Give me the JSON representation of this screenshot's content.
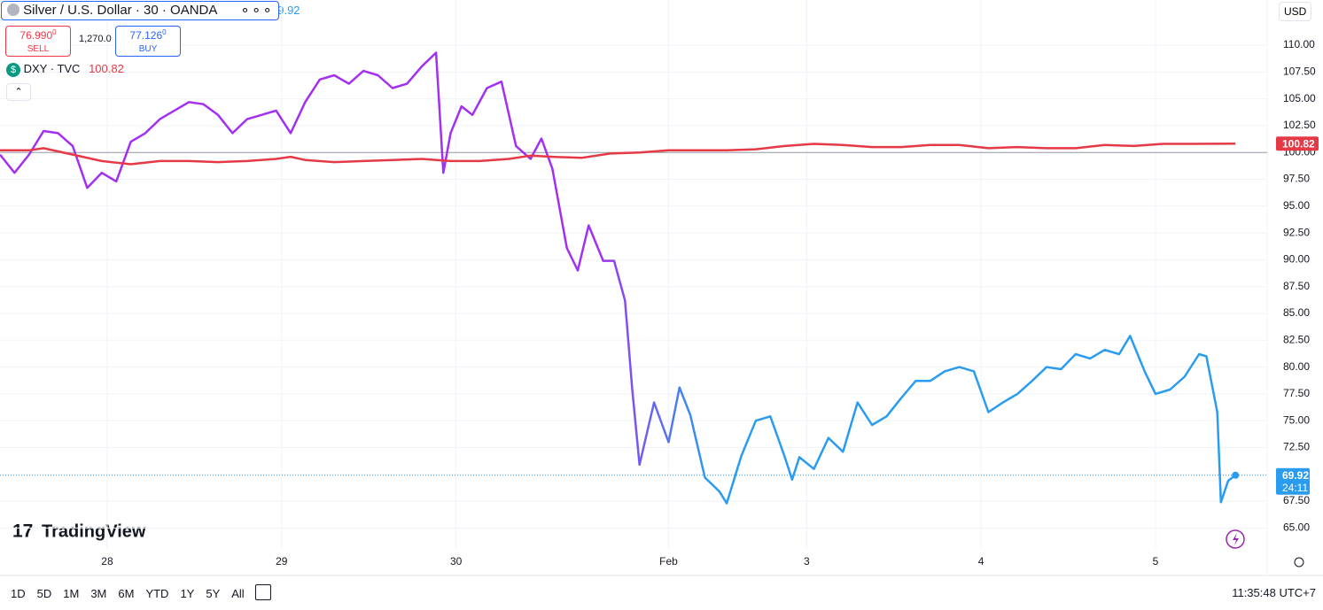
{
  "header": {
    "symbol": "Silver / U.S. Dollar · 30 · OANDA",
    "sell": {
      "price": "76.990",
      "last_digit": "0",
      "label": "SELL"
    },
    "spread": "1,270.0",
    "buy": {
      "price": "77.126",
      "last_digit": "0",
      "label": "BUY"
    },
    "currency": "USD",
    "brand": "TradingView"
  },
  "chart_data": {
    "type": "line",
    "xlim": [
      0,
      348
    ],
    "xticks": [
      {
        "value": 29.5,
        "label": "28"
      },
      {
        "value": 77.5,
        "label": "29"
      },
      {
        "value": 125.5,
        "label": "30"
      },
      {
        "value": 184,
        "label": "Feb"
      },
      {
        "value": 222,
        "label": "3"
      },
      {
        "value": 270,
        "label": "4"
      },
      {
        "value": 318,
        "label": "5"
      }
    ],
    "ylim": [
      63.05,
      114.21
    ],
    "yticks": [
      {
        "value": 65,
        "label": "65.00"
      },
      {
        "value": 67.5,
        "label": "67.50"
      },
      {
        "value": 70,
        "label": "70.00"
      },
      {
        "value": 72.5,
        "label": "72.50"
      },
      {
        "value": 75,
        "label": "75.00"
      },
      {
        "value": 77.5,
        "label": "77.50"
      },
      {
        "value": 80,
        "label": "80.00"
      },
      {
        "value": 82.5,
        "label": "82.50"
      },
      {
        "value": 85,
        "label": "85.00"
      },
      {
        "value": 87.5,
        "label": "87.50"
      },
      {
        "value": 90,
        "label": "90.00"
      },
      {
        "value": 92.5,
        "label": "92.50"
      },
      {
        "value": 95,
        "label": "95.00"
      },
      {
        "value": 97.5,
        "label": "97.50"
      },
      {
        "value": 100,
        "label": "100.00"
      },
      {
        "value": 102.5,
        "label": "102.50"
      },
      {
        "value": 105,
        "label": "105.00"
      },
      {
        "value": 107.5,
        "label": "107.50"
      },
      {
        "value": 110,
        "label": "110.00"
      }
    ],
    "grid": true,
    "hline": 100,
    "countdown": "24:11",
    "series": [
      {
        "name": "Silver",
        "gradient": [
          "#a32ff2",
          "#2a9cf0"
        ],
        "x": [
          0,
          4,
          8,
          12,
          16,
          20,
          24,
          28,
          32,
          36,
          40,
          44,
          48,
          52,
          56,
          60,
          64,
          68,
          72,
          76,
          80,
          84,
          88,
          92,
          96,
          100,
          104,
          108,
          112,
          116,
          120,
          122,
          124,
          127,
          130,
          134,
          138,
          142,
          146,
          149,
          152,
          156,
          159,
          162,
          166,
          169,
          172,
          174,
          176,
          180,
          184,
          187,
          190,
          194,
          198,
          200,
          204,
          208,
          212,
          216,
          218,
          220,
          224,
          228,
          232,
          236,
          240,
          244,
          248,
          252,
          256,
          260,
          264,
          268,
          272,
          276,
          280,
          284,
          288,
          292,
          296,
          300,
          304,
          308,
          311,
          315,
          318,
          322,
          326,
          330,
          332,
          335,
          336,
          338,
          340
        ],
        "values": [
          99.8,
          98.1,
          99.8,
          102,
          101.8,
          100.6,
          96.7,
          98.1,
          97.3,
          101,
          101.8,
          103.1,
          103.9,
          104.7,
          104.5,
          103.5,
          101.8,
          103.1,
          103.5,
          103.9,
          101.8,
          104.7,
          106.8,
          107.2,
          106.4,
          107.6,
          107.2,
          106,
          106.4,
          108,
          109.3,
          98.1,
          101.8,
          104.3,
          103.5,
          106,
          106.6,
          100.6,
          99.4,
          101.3,
          98.5,
          91.1,
          89,
          93.2,
          89.9,
          89.9,
          86.2,
          77.9,
          70.9,
          76.7,
          73,
          78.1,
          75.5,
          69.7,
          68.4,
          67.3,
          71.7,
          75,
          75.4,
          71.6,
          69.5,
          71.6,
          70.5,
          73.4,
          72.1,
          76.7,
          74.6,
          75.4,
          77.1,
          78.7,
          78.7,
          79.6,
          80,
          79.6,
          75.8,
          76.7,
          77.5,
          78.7,
          80,
          79.8,
          81.2,
          80.8,
          81.6,
          81.2,
          82.9,
          79.6,
          77.5,
          77.9,
          79.1,
          81.2,
          81,
          75.8,
          67.4,
          69.4,
          69.92
        ]
      },
      {
        "name": "DXY · TVC",
        "color": "#e53945",
        "x": [
          0,
          8,
          12,
          20,
          28,
          36,
          44,
          52,
          60,
          68,
          76,
          80,
          84,
          92,
          100,
          108,
          116,
          124,
          132,
          140,
          146,
          152,
          160,
          168,
          176,
          184,
          192,
          200,
          208,
          216,
          224,
          232,
          240,
          248,
          256,
          264,
          272,
          280,
          288,
          296,
          304,
          312,
          320,
          328,
          340
        ],
        "values": [
          100.2,
          100.2,
          100.4,
          99.8,
          99.2,
          98.9,
          99.2,
          99.2,
          99.1,
          99.2,
          99.4,
          99.6,
          99.3,
          99.1,
          99.2,
          99.3,
          99.4,
          99.2,
          99.2,
          99.4,
          99.7,
          99.6,
          99.5,
          99.9,
          100,
          100.2,
          100.2,
          100.2,
          100.3,
          100.6,
          100.8,
          100.7,
          100.5,
          100.5,
          100.7,
          100.7,
          100.4,
          100.5,
          100.4,
          100.4,
          100.7,
          100.6,
          100.8,
          100.8,
          100.82
        ]
      }
    ]
  },
  "toolbar": {
    "ranges": [
      "1D",
      "5D",
      "1M",
      "3M",
      "6M",
      "YTD",
      "1Y",
      "5Y",
      "All"
    ],
    "clock": "11:35:48 UTC+7"
  }
}
